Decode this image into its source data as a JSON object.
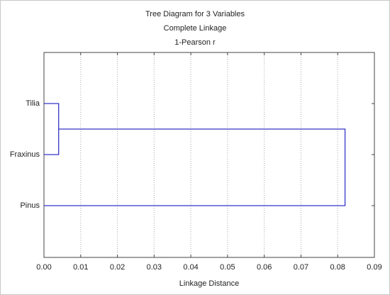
{
  "chart_data": {
    "type": "dendrogram",
    "title": "Tree Diagram for 3   Variables",
    "subtitle": "Complete Linkage",
    "metric": "1-Pearson r",
    "categories": [
      "Tilia",
      "Fraxinus",
      "Pinus"
    ],
    "merge_heights": [
      0.004,
      0.082
    ],
    "color": "#3535c8",
    "xlabel": "Linkage Distance",
    "xlim": [
      0,
      0.09
    ],
    "xticks": [
      {
        "value": 0,
        "label": "0.00"
      },
      {
        "value": 0.01,
        "label": "0.01"
      },
      {
        "value": 0.02,
        "label": "0.02"
      },
      {
        "value": 0.03,
        "label": "0.03"
      },
      {
        "value": 0.04,
        "label": "0.04"
      },
      {
        "value": 0.05,
        "label": "0.05"
      },
      {
        "value": 0.06,
        "label": "0.06"
      },
      {
        "value": 0.07,
        "label": "0.07"
      },
      {
        "value": 0.08,
        "label": "0.08"
      },
      {
        "value": 0.09,
        "label": "0.09"
      }
    ],
    "grid": true
  }
}
